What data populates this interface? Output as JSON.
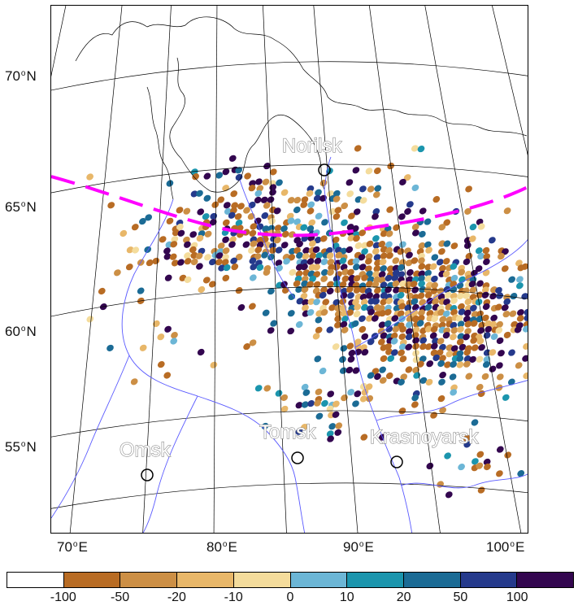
{
  "map": {
    "lat_labels": [
      {
        "deg": "70",
        "hemi": "N"
      },
      {
        "deg": "65",
        "hemi": "N"
      },
      {
        "deg": "60",
        "hemi": "N"
      },
      {
        "deg": "55",
        "hemi": "N"
      }
    ],
    "lon_labels": [
      {
        "deg": "70",
        "hemi": "E"
      },
      {
        "deg": "80",
        "hemi": "E"
      },
      {
        "deg": "90",
        "hemi": "E"
      },
      {
        "deg": "100",
        "hemi": "E"
      }
    ],
    "cities": [
      "Norilsk",
      "Omsk",
      "Tomsk",
      "Krasnoyarsk"
    ],
    "colors": {
      "coastline": "#000000",
      "rivers": "#5a5aff",
      "boundary_line": "#ff00ff",
      "grid": "#000000"
    }
  },
  "colorbar": {
    "ticks": [
      "-100",
      "-50",
      "-20",
      "-10",
      "0",
      "10",
      "20",
      "50",
      "100"
    ],
    "colors": [
      "#ffffff",
      "#b86c24",
      "#cc8f45",
      "#e8b769",
      "#f4dc9c",
      "#6cb6d6",
      "#1b95ad",
      "#1b6b95",
      "#253a8c",
      "#33064f"
    ]
  }
}
